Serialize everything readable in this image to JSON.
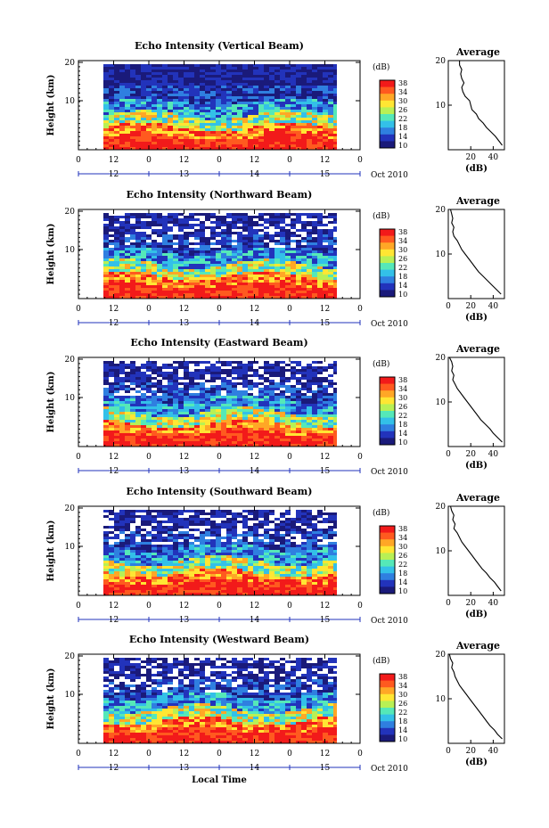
{
  "colorbar": {
    "unit": "(dB)",
    "ticks": [
      "38",
      "34",
      "30",
      "26",
      "22",
      "18",
      "14",
      "10"
    ],
    "colors": [
      "#1a1a7a",
      "#2233bb",
      "#2f7fe0",
      "#33c0e8",
      "#55e8b8",
      "#b8f055",
      "#ffe633",
      "#ffa726",
      "#ff5a1f",
      "#f21a1a"
    ]
  },
  "x_labels": {
    "local_time": "Local Time",
    "hours": [
      "0",
      "12",
      "0",
      "12",
      "0",
      "12",
      "0",
      "12",
      "0"
    ],
    "days": [
      "12",
      "13",
      "14",
      "15"
    ],
    "month": "Oct 2010"
  },
  "y_labels": {
    "height": "Height (km)",
    "ticks": [
      "20",
      "10"
    ]
  },
  "average_title": "Average",
  "average_xlabel": "(dB)",
  "chart_data": [
    {
      "type": "heatmap",
      "title": "Echo Intensity (Vertical Beam)",
      "ylabel": "Height (km)",
      "xlabel": "Local Time",
      "ylim": [
        0,
        20
      ],
      "clim": [
        10,
        38
      ],
      "profile": {
        "title": "Average",
        "xlabel": "(dB)",
        "xticks": [
          "20",
          "40"
        ],
        "xlim": [
          0,
          50
        ],
        "ylim": [
          0,
          20
        ],
        "height_km": [
          20,
          19,
          18,
          17,
          16,
          15,
          14,
          13,
          12,
          11,
          10,
          9,
          8,
          7,
          6,
          5,
          4,
          3,
          2,
          1
        ],
        "db": [
          10,
          10,
          12,
          11,
          12,
          14,
          12,
          13,
          15,
          19,
          20,
          21,
          25,
          27,
          31,
          34,
          38,
          42,
          45,
          48
        ]
      }
    },
    {
      "type": "heatmap",
      "title": "Echo Intensity (Northward Beam)",
      "ylabel": "Height (km)",
      "xlabel": "Local Time",
      "ylim": [
        0,
        20
      ],
      "clim": [
        10,
        38
      ],
      "profile": {
        "title": "Average",
        "xlabel": "(dB)",
        "xticks": [
          "0",
          "20",
          "40"
        ],
        "xlim": [
          0,
          50
        ],
        "ylim": [
          0,
          20
        ],
        "height_km": [
          20,
          19,
          18,
          17,
          16,
          15,
          14,
          13,
          12,
          11,
          10,
          9,
          8,
          7,
          6,
          5,
          4,
          3,
          2,
          1
        ],
        "db": [
          2,
          3,
          4,
          3,
          5,
          4,
          5,
          8,
          10,
          12,
          15,
          18,
          21,
          24,
          27,
          31,
          35,
          39,
          43,
          47
        ]
      }
    },
    {
      "type": "heatmap",
      "title": "Echo Intensity (Eastward Beam)",
      "ylabel": "Height (km)",
      "xlabel": "Local Time",
      "ylim": [
        0,
        20
      ],
      "clim": [
        10,
        38
      ],
      "profile": {
        "title": "Average",
        "xlabel": "(dB)",
        "xticks": [
          "0",
          "20",
          "40"
        ],
        "xlim": [
          0,
          50
        ],
        "ylim": [
          0,
          20
        ],
        "height_km": [
          20,
          19,
          18,
          17,
          16,
          15,
          14,
          13,
          12,
          11,
          10,
          9,
          8,
          7,
          6,
          5,
          4,
          3,
          2,
          1
        ],
        "db": [
          1,
          3,
          4,
          3,
          5,
          4,
          6,
          8,
          11,
          14,
          17,
          20,
          23,
          26,
          29,
          33,
          37,
          40,
          44,
          48
        ]
      }
    },
    {
      "type": "heatmap",
      "title": "Echo Intensity (Southward Beam)",
      "ylabel": "Height (km)",
      "xlabel": "Local Time",
      "ylim": [
        0,
        20
      ],
      "clim": [
        10,
        38
      ],
      "profile": {
        "title": "Average",
        "xlabel": "(dB)",
        "xticks": [
          "0",
          "20",
          "40"
        ],
        "xlim": [
          0,
          50
        ],
        "ylim": [
          0,
          20
        ],
        "height_km": [
          20,
          19,
          18,
          17,
          16,
          15,
          14,
          13,
          12,
          11,
          10,
          9,
          8,
          7,
          6,
          5,
          4,
          3,
          2,
          1
        ],
        "db": [
          2,
          3,
          5,
          4,
          6,
          5,
          8,
          10,
          12,
          15,
          18,
          21,
          24,
          27,
          30,
          34,
          37,
          41,
          44,
          47
        ]
      }
    },
    {
      "type": "heatmap",
      "title": "Echo Intensity (Westward Beam)",
      "ylabel": "Height (km)",
      "xlabel": "Local Time",
      "ylim": [
        0,
        20
      ],
      "clim": [
        10,
        38
      ],
      "profile": {
        "title": "Average",
        "xlabel": "(dB)",
        "xticks": [
          "0",
          "20",
          "40"
        ],
        "xlim": [
          0,
          50
        ],
        "ylim": [
          0,
          20
        ],
        "height_km": [
          20,
          19,
          18,
          17,
          16,
          15,
          14,
          13,
          12,
          11,
          10,
          9,
          8,
          7,
          6,
          5,
          4,
          3,
          2,
          1
        ],
        "db": [
          1,
          2,
          4,
          3,
          5,
          6,
          8,
          10,
          13,
          16,
          19,
          22,
          25,
          28,
          31,
          34,
          37,
          41,
          44,
          48
        ]
      }
    }
  ]
}
